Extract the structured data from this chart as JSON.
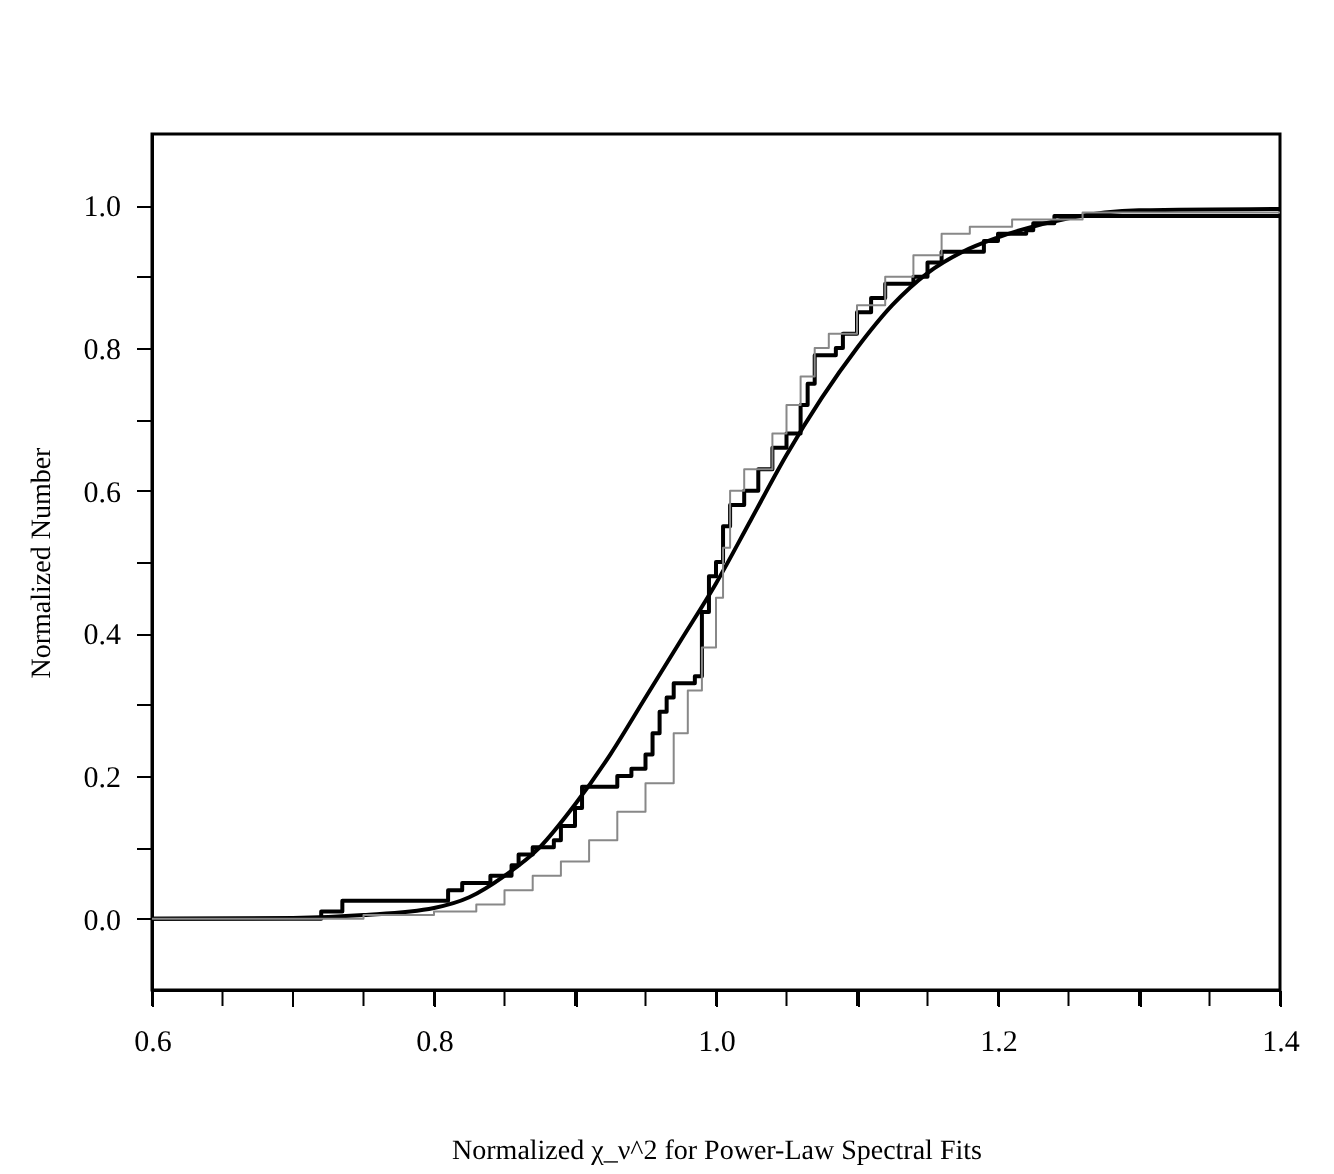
{
  "chart_data": {
    "type": "line",
    "xlabel": "Normalized χ_ν^2 for Power-Law Spectral Fits",
    "ylabel": "Normalized Number",
    "xlim": [
      0.6,
      1.4
    ],
    "ylim": [
      -0.1,
      1.1
    ],
    "xticks": [
      {
        "value": 0.6,
        "label": "0.6"
      },
      {
        "value": 0.65,
        "label": null
      },
      {
        "value": 0.7,
        "label": null
      },
      {
        "value": 0.75,
        "label": null
      },
      {
        "value": 0.8,
        "label": "0.8"
      },
      {
        "value": 0.85,
        "label": null
      },
      {
        "value": 0.9,
        "label": null
      },
      {
        "value": 0.95,
        "label": null
      },
      {
        "value": 1.0,
        "label": "1.0"
      },
      {
        "value": 1.05,
        "label": null
      },
      {
        "value": 1.1,
        "label": null
      },
      {
        "value": 1.15,
        "label": null
      },
      {
        "value": 1.2,
        "label": "1.2"
      },
      {
        "value": 1.25,
        "label": null
      },
      {
        "value": 1.3,
        "label": null
      },
      {
        "value": 1.35,
        "label": null
      },
      {
        "value": 1.4,
        "label": "1.4"
      }
    ],
    "yticks": [
      {
        "value": 0.0,
        "label": "0.0"
      },
      {
        "value": 0.1,
        "label": null
      },
      {
        "value": 0.2,
        "label": "0.2"
      },
      {
        "value": 0.3,
        "label": null
      },
      {
        "value": 0.4,
        "label": "0.4"
      },
      {
        "value": 0.5,
        "label": null
      },
      {
        "value": 0.6,
        "label": "0.6"
      },
      {
        "value": 0.7,
        "label": null
      },
      {
        "value": 0.8,
        "label": "0.8"
      },
      {
        "value": 0.9,
        "label": null
      },
      {
        "value": 1.0,
        "label": "1.0"
      }
    ],
    "grid": false,
    "marker": "none",
    "line_style": "solid",
    "series": [
      {
        "color": "#000000",
        "x": [
          0.6,
          0.7,
          0.75,
          0.8,
          0.825,
          0.85,
          0.875,
          0.9,
          0.925,
          0.95,
          0.975,
          1.0,
          1.025,
          1.05,
          1.075,
          1.1,
          1.125,
          1.15,
          1.175,
          1.2,
          1.25,
          1.3,
          1.4
        ],
        "values": [
          0.0,
          0.001,
          0.005,
          0.015,
          0.03,
          0.06,
          0.1,
          0.16,
          0.23,
          0.31,
          0.39,
          0.47,
          0.56,
          0.65,
          0.73,
          0.8,
          0.86,
          0.905,
          0.935,
          0.955,
          0.982,
          0.993,
          0.995
        ]
      },
      {
        "type": "step",
        "color": "#000000",
        "x": [
          0.6,
          0.72,
          0.735,
          0.81,
          0.82,
          0.84,
          0.855,
          0.86,
          0.87,
          0.885,
          0.89,
          0.9,
          0.905,
          0.93,
          0.94,
          0.95,
          0.955,
          0.96,
          0.965,
          0.97,
          0.985,
          0.99,
          0.995,
          1.0,
          1.005,
          1.01,
          1.02,
          1.03,
          1.04,
          1.05,
          1.06,
          1.065,
          1.07,
          1.085,
          1.09,
          1.1,
          1.11,
          1.12,
          1.14,
          1.15,
          1.16,
          1.19,
          1.2,
          1.22,
          1.225,
          1.24,
          1.4
        ],
        "values": [
          0.0,
          0.01,
          0.025,
          0.04,
          0.05,
          0.06,
          0.075,
          0.09,
          0.1,
          0.11,
          0.13,
          0.155,
          0.185,
          0.2,
          0.21,
          0.23,
          0.26,
          0.29,
          0.31,
          0.33,
          0.34,
          0.43,
          0.48,
          0.5,
          0.55,
          0.58,
          0.6,
          0.63,
          0.66,
          0.68,
          0.72,
          0.75,
          0.79,
          0.8,
          0.82,
          0.85,
          0.87,
          0.89,
          0.9,
          0.92,
          0.935,
          0.95,
          0.96,
          0.965,
          0.975,
          0.985,
          0.985
        ]
      },
      {
        "type": "step",
        "color": "#888888",
        "x": [
          0.6,
          0.75,
          0.8,
          0.83,
          0.85,
          0.87,
          0.89,
          0.91,
          0.93,
          0.95,
          0.97,
          0.98,
          0.99,
          1.0,
          1.005,
          1.01,
          1.02,
          1.04,
          1.05,
          1.06,
          1.07,
          1.08,
          1.1,
          1.12,
          1.14,
          1.16,
          1.18,
          1.21,
          1.26,
          1.4
        ],
        "values": [
          0.0,
          0.005,
          0.01,
          0.02,
          0.04,
          0.06,
          0.08,
          0.11,
          0.15,
          0.19,
          0.26,
          0.32,
          0.38,
          0.45,
          0.52,
          0.6,
          0.63,
          0.68,
          0.72,
          0.76,
          0.8,
          0.82,
          0.86,
          0.9,
          0.93,
          0.96,
          0.97,
          0.98,
          0.99,
          0.99
        ]
      }
    ]
  }
}
